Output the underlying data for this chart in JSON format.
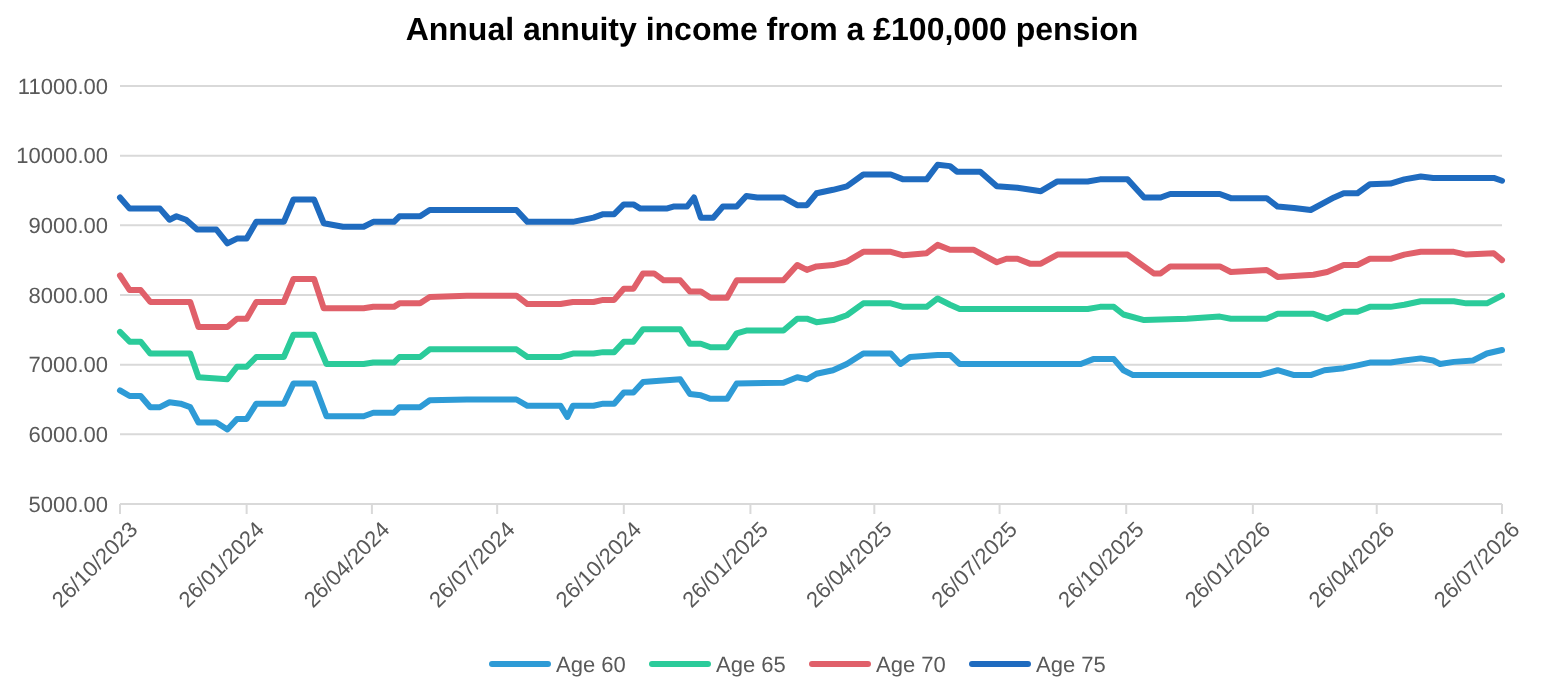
{
  "chart_data": {
    "type": "line",
    "title": "Annual annuity income from a £100,000 pension",
    "legend": "bottom",
    "grid": "y",
    "marker": "none",
    "line_style": "solid",
    "xlim": [
      "2023-10-26",
      "2026-07-26"
    ],
    "xticks": [
      {
        "value": "2023-10-26",
        "label": "26/10/2023"
      },
      {
        "value": "2024-01-26",
        "label": "26/01/2024"
      },
      {
        "value": "2024-04-26",
        "label": "26/04/2024"
      },
      {
        "value": "2024-07-26",
        "label": "26/07/2024"
      },
      {
        "value": "2024-10-26",
        "label": "26/10/2024"
      },
      {
        "value": "2025-01-26",
        "label": "26/01/2025"
      },
      {
        "value": "2025-04-26",
        "label": "26/04/2025"
      },
      {
        "value": "2025-07-26",
        "label": "26/07/2025"
      },
      {
        "value": "2025-10-26",
        "label": "26/10/2025"
      },
      {
        "value": "2026-01-26",
        "label": "26/01/2026"
      },
      {
        "value": "2026-04-26",
        "label": "26/04/2026"
      },
      {
        "value": "2026-07-26",
        "label": "26/07/2026"
      }
    ],
    "ylim": [
      5000,
      11000
    ],
    "yticks": [
      {
        "value": 5000,
        "label": "5000.00"
      },
      {
        "value": 6000,
        "label": "6000.00"
      },
      {
        "value": 7000,
        "label": "7000.00"
      },
      {
        "value": 8000,
        "label": "8000.00"
      },
      {
        "value": 9000,
        "label": "9000.00"
      },
      {
        "value": 10000,
        "label": "10000.00"
      },
      {
        "value": 11000,
        "label": "11000.00"
      }
    ],
    "series": [
      {
        "name": "Age 60",
        "color": "#2e9bd6",
        "x": [
          "2023-10-26",
          "2023-11-02",
          "2023-11-10",
          "2023-11-17",
          "2023-11-24",
          "2023-12-01",
          "2023-12-09",
          "2023-12-16",
          "2023-12-22",
          "2024-01-04",
          "2024-01-12",
          "2024-01-19",
          "2024-01-26",
          "2024-02-02",
          "2024-02-22",
          "2024-02-29",
          "2024-03-15",
          "2024-03-24",
          "2024-04-20",
          "2024-04-27",
          "2024-05-12",
          "2024-05-16",
          "2024-05-31",
          "2024-06-07",
          "2024-07-04",
          "2024-08-09",
          "2024-08-17",
          "2024-09-10",
          "2024-09-15",
          "2024-09-19",
          "2024-10-04",
          "2024-10-11",
          "2024-10-19",
          "2024-10-26",
          "2024-11-02",
          "2024-11-09",
          "2024-11-21",
          "2024-12-06",
          "2024-12-13",
          "2024-12-21",
          "2024-12-28",
          "2025-01-09",
          "2025-01-16",
          "2025-02-19",
          "2025-03-01",
          "2025-03-08",
          "2025-03-15",
          "2025-03-27",
          "2025-04-06",
          "2025-04-18",
          "2025-05-08",
          "2025-05-15",
          "2025-05-22",
          "2025-06-11",
          "2025-06-20",
          "2025-06-27",
          "2025-09-23",
          "2025-10-02",
          "2025-10-17",
          "2025-10-24",
          "2025-10-31",
          "2026-01-31",
          "2026-02-13",
          "2026-02-25",
          "2026-03-09",
          "2026-03-19",
          "2026-04-02",
          "2026-04-12",
          "2026-04-21",
          "2026-05-06",
          "2026-05-16",
          "2026-05-28",
          "2026-06-06",
          "2026-06-11",
          "2026-06-21",
          "2026-07-05",
          "2026-07-15",
          "2026-07-26"
        ],
        "values": [
          6630,
          6550,
          6550,
          6390,
          6390,
          6460,
          6440,
          6390,
          6170,
          6170,
          6070,
          6220,
          6220,
          6440,
          6440,
          6730,
          6730,
          6260,
          6260,
          6310,
          6310,
          6390,
          6390,
          6490,
          6500,
          6500,
          6410,
          6410,
          6250,
          6410,
          6410,
          6440,
          6440,
          6600,
          6600,
          6750,
          6770,
          6790,
          6580,
          6560,
          6510,
          6510,
          6730,
          6740,
          6820,
          6790,
          6870,
          6920,
          7010,
          7160,
          7160,
          7010,
          7110,
          7140,
          7140,
          7010,
          7010,
          7080,
          7080,
          6920,
          6850,
          6850,
          6920,
          6850,
          6850,
          6920,
          6950,
          6990,
          7030,
          7030,
          7060,
          7090,
          7060,
          7010,
          7040,
          7060,
          7160,
          7210
        ]
      },
      {
        "name": "Age 65",
        "color": "#2bcb9a",
        "x": [
          "2023-10-26",
          "2023-11-02",
          "2023-11-10",
          "2023-11-17",
          "2023-12-16",
          "2023-12-22",
          "2024-01-12",
          "2024-01-19",
          "2024-01-26",
          "2024-02-02",
          "2024-02-22",
          "2024-02-29",
          "2024-03-15",
          "2024-03-24",
          "2024-04-20",
          "2024-04-27",
          "2024-05-12",
          "2024-05-16",
          "2024-05-31",
          "2024-06-07",
          "2024-08-09",
          "2024-08-17",
          "2024-09-10",
          "2024-09-19",
          "2024-10-04",
          "2024-10-11",
          "2024-10-19",
          "2024-10-26",
          "2024-11-02",
          "2024-11-09",
          "2024-12-06",
          "2024-12-13",
          "2024-12-21",
          "2024-12-28",
          "2025-01-09",
          "2025-01-16",
          "2025-01-23",
          "2025-02-19",
          "2025-03-01",
          "2025-03-08",
          "2025-03-15",
          "2025-03-27",
          "2025-04-06",
          "2025-04-18",
          "2025-05-08",
          "2025-05-17",
          "2025-06-03",
          "2025-06-11",
          "2025-06-20",
          "2025-06-27",
          "2025-09-28",
          "2025-10-07",
          "2025-10-17",
          "2025-10-24",
          "2025-11-08",
          "2025-12-09",
          "2026-01-02",
          "2026-01-10",
          "2026-02-05",
          "2026-02-13",
          "2026-03-11",
          "2026-03-21",
          "2026-04-02",
          "2026-04-12",
          "2026-04-21",
          "2026-05-06",
          "2026-05-16",
          "2026-05-28",
          "2026-06-21",
          "2026-06-30",
          "2026-07-15",
          "2026-07-26"
        ],
        "values": [
          7470,
          7330,
          7330,
          7160,
          7160,
          6820,
          6790,
          6970,
          6970,
          7110,
          7110,
          7430,
          7430,
          7010,
          7010,
          7030,
          7030,
          7110,
          7110,
          7220,
          7220,
          7110,
          7110,
          7160,
          7160,
          7180,
          7180,
          7330,
          7330,
          7510,
          7510,
          7300,
          7300,
          7250,
          7250,
          7450,
          7490,
          7490,
          7660,
          7660,
          7610,
          7640,
          7710,
          7880,
          7880,
          7830,
          7830,
          7950,
          7860,
          7800,
          7800,
          7830,
          7830,
          7720,
          7640,
          7660,
          7690,
          7660,
          7660,
          7730,
          7730,
          7660,
          7760,
          7760,
          7830,
          7830,
          7860,
          7910,
          7910,
          7880,
          7880,
          7990
        ]
      },
      {
        "name": "Age 70",
        "color": "#e0606a",
        "x": [
          "2023-10-26",
          "2023-11-02",
          "2023-11-10",
          "2023-11-17",
          "2023-12-16",
          "2023-12-22",
          "2024-01-12",
          "2024-01-19",
          "2024-01-26",
          "2024-02-02",
          "2024-02-22",
          "2024-02-29",
          "2024-03-15",
          "2024-03-22",
          "2024-04-20",
          "2024-04-27",
          "2024-05-12",
          "2024-05-16",
          "2024-05-31",
          "2024-06-07",
          "2024-07-04",
          "2024-08-09",
          "2024-08-17",
          "2024-09-10",
          "2024-09-19",
          "2024-10-04",
          "2024-10-11",
          "2024-10-19",
          "2024-10-26",
          "2024-11-02",
          "2024-11-09",
          "2024-11-17",
          "2024-11-24",
          "2024-12-06",
          "2024-12-13",
          "2024-12-21",
          "2024-12-28",
          "2025-01-09",
          "2025-01-16",
          "2025-02-19",
          "2025-03-01",
          "2025-03-08",
          "2025-03-15",
          "2025-03-27",
          "2025-04-06",
          "2025-04-18",
          "2025-05-08",
          "2025-05-17",
          "2025-06-03",
          "2025-06-11",
          "2025-06-20",
          "2025-07-07",
          "2025-07-24",
          "2025-07-31",
          "2025-08-08",
          "2025-08-17",
          "2025-08-25",
          "2025-09-06",
          "2025-10-27",
          "2025-11-03",
          "2025-11-15",
          "2025-11-20",
          "2025-11-27",
          "2026-01-02",
          "2026-01-10",
          "2026-02-05",
          "2026-02-13",
          "2026-03-11",
          "2026-03-21",
          "2026-04-02",
          "2026-04-12",
          "2026-04-21",
          "2026-05-06",
          "2026-05-16",
          "2026-05-28",
          "2026-06-21",
          "2026-06-30",
          "2026-07-20",
          "2026-07-26"
        ],
        "values": [
          8280,
          8070,
          8070,
          7900,
          7900,
          7540,
          7540,
          7660,
          7660,
          7900,
          7900,
          8230,
          8230,
          7810,
          7810,
          7830,
          7830,
          7880,
          7880,
          7970,
          7990,
          7990,
          7870,
          7870,
          7900,
          7900,
          7930,
          7930,
          8090,
          8090,
          8310,
          8310,
          8210,
          8210,
          8050,
          8050,
          7960,
          7960,
          8210,
          8210,
          8430,
          8360,
          8410,
          8430,
          8480,
          8620,
          8620,
          8570,
          8600,
          8720,
          8650,
          8650,
          8470,
          8520,
          8520,
          8450,
          8450,
          8580,
          8580,
          8480,
          8310,
          8310,
          8410,
          8410,
          8330,
          8360,
          8260,
          8290,
          8330,
          8430,
          8430,
          8520,
          8520,
          8580,
          8620,
          8620,
          8580,
          8600,
          8500
        ]
      },
      {
        "name": "Age 75",
        "color": "#1f6bbf",
        "x": [
          "2023-10-26",
          "2023-11-02",
          "2023-11-24",
          "2023-12-01",
          "2023-12-06",
          "2023-12-13",
          "2023-12-21",
          "2024-01-04",
          "2024-01-12",
          "2024-01-19",
          "2024-01-26",
          "2024-02-02",
          "2024-02-22",
          "2024-02-29",
          "2024-03-15",
          "2024-03-22",
          "2024-04-05",
          "2024-04-20",
          "2024-04-27",
          "2024-05-12",
          "2024-05-16",
          "2024-05-31",
          "2024-06-07",
          "2024-08-09",
          "2024-08-17",
          "2024-09-19",
          "2024-10-04",
          "2024-10-11",
          "2024-10-19",
          "2024-10-26",
          "2024-11-02",
          "2024-11-07",
          "2024-11-26",
          "2024-12-01",
          "2024-12-11",
          "2024-12-16",
          "2024-12-21",
          "2024-12-30",
          "2025-01-06",
          "2025-01-16",
          "2025-01-23",
          "2025-01-31",
          "2025-02-19",
          "2025-03-01",
          "2025-03-08",
          "2025-03-15",
          "2025-03-27",
          "2025-04-06",
          "2025-04-18",
          "2025-05-08",
          "2025-05-17",
          "2025-06-03",
          "2025-06-11",
          "2025-06-20",
          "2025-06-25",
          "2025-07-12",
          "2025-07-24",
          "2025-08-08",
          "2025-08-25",
          "2025-09-06",
          "2025-09-28",
          "2025-10-07",
          "2025-10-27",
          "2025-11-08",
          "2025-11-20",
          "2025-11-27",
          "2026-01-02",
          "2026-01-10",
          "2026-02-05",
          "2026-02-13",
          "2026-02-25",
          "2026-03-09",
          "2026-03-26",
          "2026-04-02",
          "2026-04-12",
          "2026-04-21",
          "2026-05-06",
          "2026-05-16",
          "2026-05-28",
          "2026-06-06",
          "2026-07-20",
          "2026-07-26"
        ],
        "values": [
          9400,
          9240,
          9240,
          9080,
          9130,
          9080,
          8940,
          8940,
          8740,
          8810,
          8810,
          9050,
          9050,
          9370,
          9370,
          9030,
          8980,
          8980,
          9050,
          9050,
          9130,
          9130,
          9220,
          9220,
          9050,
          9050,
          9110,
          9160,
          9160,
          9300,
          9300,
          9240,
          9240,
          9270,
          9270,
          9400,
          9110,
          9110,
          9270,
          9270,
          9420,
          9400,
          9400,
          9290,
          9290,
          9460,
          9510,
          9560,
          9730,
          9730,
          9660,
          9660,
          9870,
          9850,
          9770,
          9770,
          9560,
          9540,
          9490,
          9630,
          9630,
          9660,
          9660,
          9400,
          9400,
          9450,
          9450,
          9390,
          9390,
          9270,
          9250,
          9220,
          9400,
          9460,
          9460,
          9590,
          9600,
          9660,
          9700,
          9680,
          9680,
          9640
        ]
      }
    ]
  }
}
